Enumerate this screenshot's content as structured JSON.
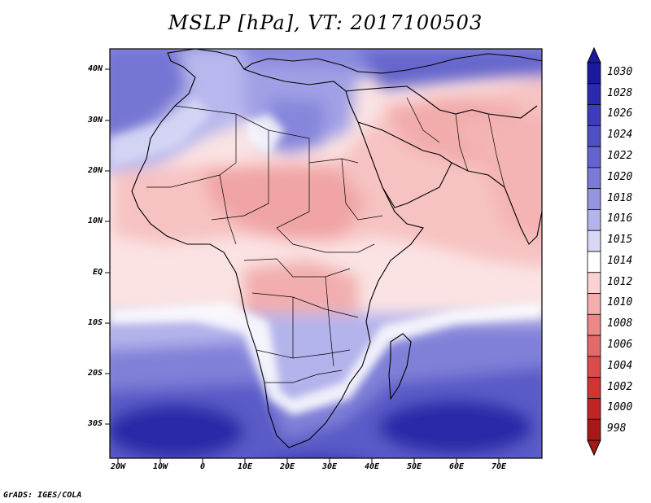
{
  "title": "MSLP [hPa], VT: 2017100503",
  "footer": "GrADS: IGES/COLA",
  "y_axis_labels": [
    "40N",
    "30N",
    "20N",
    "10N",
    "EQ",
    "10S",
    "20S",
    "30S"
  ],
  "x_axis_labels": [
    "20W",
    "10W",
    "0",
    "10E",
    "20E",
    "30E",
    "40E",
    "50E",
    "60E",
    "70E"
  ],
  "colorbar": {
    "labels": [
      "1030",
      "1028",
      "1026",
      "1024",
      "1022",
      "1020",
      "1018",
      "1016",
      "1015",
      "1014",
      "1012",
      "1010",
      "1008",
      "1006",
      "1004",
      "1002",
      "1000",
      "998"
    ],
    "colors": [
      "#1a1aa0",
      "#2a2ab0",
      "#3c3cbc",
      "#4f4fc6",
      "#6464d0",
      "#7a7ad8",
      "#9494e0",
      "#b4b4ec",
      "#d8d8f6",
      "#ffffff",
      "#fad2d2",
      "#f4aeae",
      "#ec8888",
      "#e46a6a",
      "#dc4c4c",
      "#d23434",
      "#c22424",
      "#a81818"
    ]
  },
  "map": {
    "region": "Africa, Arabian Peninsula and Indian Ocean",
    "lon_range": [
      -23,
      80
    ],
    "lat_range": [
      -37,
      45
    ]
  }
}
